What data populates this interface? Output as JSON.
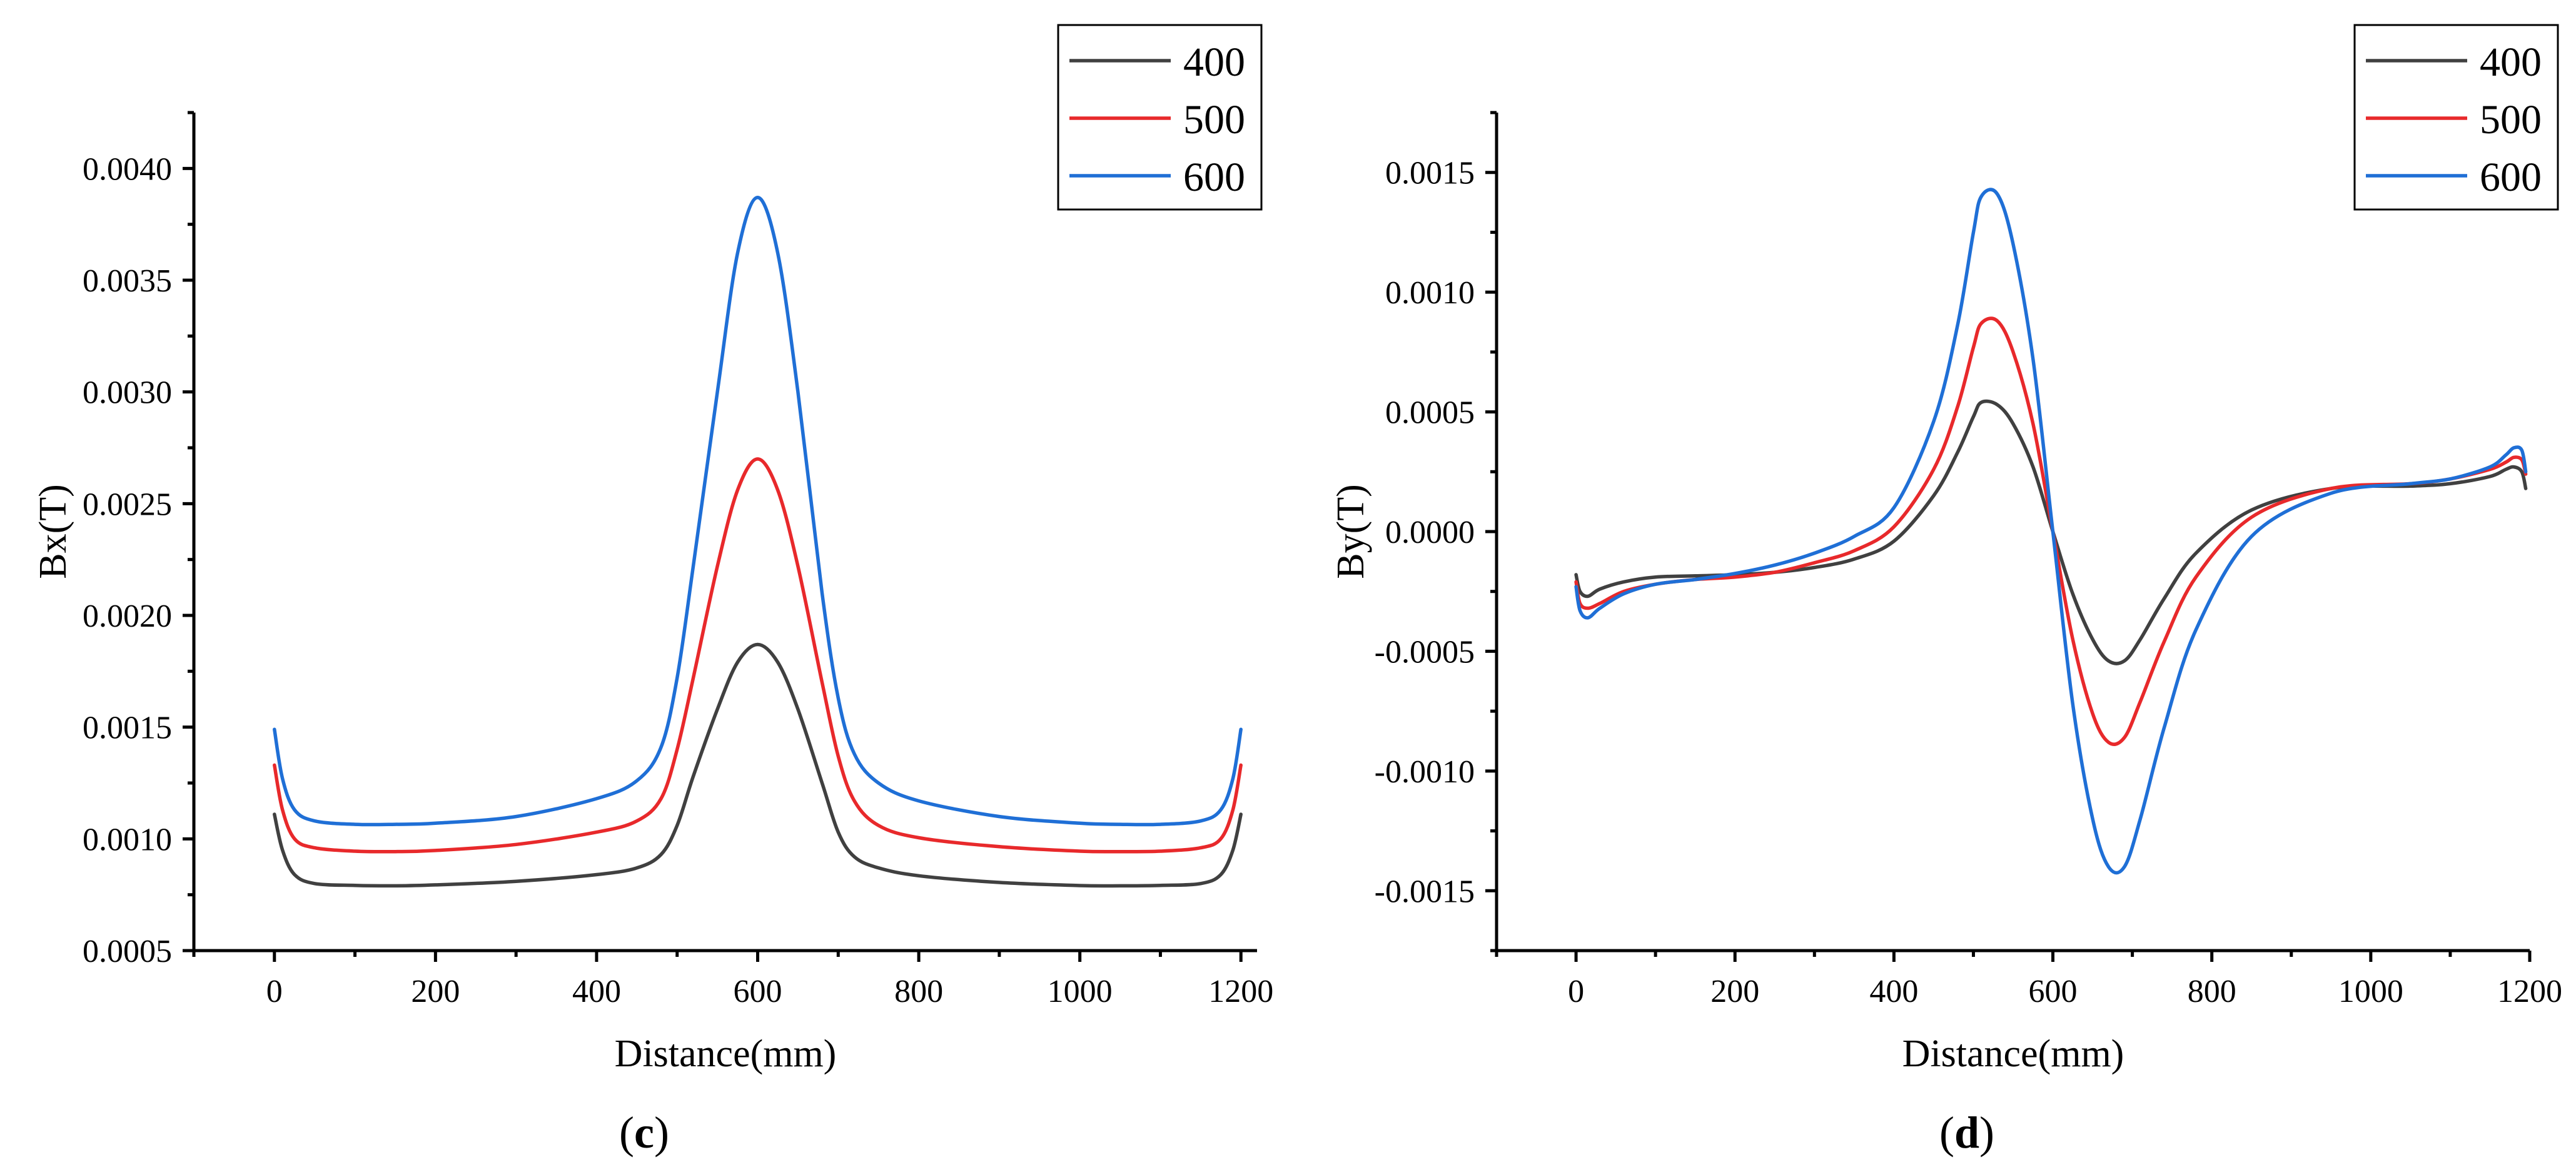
{
  "chart_data": [
    {
      "type": "line",
      "panel": "c",
      "caption_open": "(",
      "caption_letter": "c",
      "caption_close": ")",
      "xlabel": "Distance(mm)",
      "ylabel": "Bx(T)",
      "xlim": [
        -100,
        1220
      ],
      "ylim": [
        0.0005,
        0.00425
      ],
      "xticks": [
        0,
        200,
        400,
        600,
        800,
        1000,
        1200
      ],
      "xtick_labels": [
        "0",
        "200",
        "400",
        "600",
        "800",
        "1000",
        "1200"
      ],
      "yticks": [
        0.0005,
        0.001,
        0.0015,
        0.002,
        0.0025,
        0.003,
        0.0035,
        0.004
      ],
      "ytick_labels": [
        "0.0005",
        "0.0010",
        "0.0015",
        "0.0020",
        "0.0025",
        "0.0030",
        "0.0035",
        "0.0040"
      ],
      "legend_position": "top-right",
      "series": [
        {
          "name": "400",
          "color": "#404040",
          "x": [
            0,
            10,
            25,
            50,
            100,
            150,
            200,
            300,
            400,
            450,
            480,
            500,
            520,
            550,
            575,
            600,
            625,
            650,
            680,
            700,
            720,
            750,
            800,
            900,
            1000,
            1050,
            1100,
            1150,
            1175,
            1190,
            1200
          ],
          "y": [
            0.00111,
            0.00095,
            0.00084,
            0.0008,
            0.000792,
            0.00079,
            0.000794,
            0.00081,
            0.00084,
            0.00087,
            0.00093,
            0.00106,
            0.00128,
            0.00158,
            0.00179,
            0.00187,
            0.00179,
            0.00158,
            0.00125,
            0.00103,
            0.00092,
            0.00087,
            0.000835,
            0.000805,
            0.000791,
            0.00079,
            0.000792,
            0.0008,
            0.00084,
            0.00095,
            0.00111
          ]
        },
        {
          "name": "500",
          "color": "#e8292b",
          "x": [
            0,
            10,
            25,
            50,
            100,
            150,
            200,
            300,
            400,
            450,
            480,
            500,
            520,
            550,
            575,
            600,
            625,
            650,
            680,
            700,
            720,
            750,
            800,
            900,
            1000,
            1050,
            1100,
            1150,
            1175,
            1190,
            1200
          ],
          "y": [
            0.00133,
            0.00113,
            0.001,
            0.00096,
            0.000945,
            0.000943,
            0.000948,
            0.000975,
            0.00103,
            0.00108,
            0.00118,
            0.0014,
            0.00172,
            0.00222,
            0.00256,
            0.0027,
            0.00256,
            0.00222,
            0.0017,
            0.00137,
            0.00117,
            0.00106,
            0.001005,
            0.000965,
            0.000945,
            0.000943,
            0.000945,
            0.00096,
            0.001,
            0.00113,
            0.00133
          ]
        },
        {
          "name": "600",
          "color": "#1f6fd6",
          "x": [
            0,
            10,
            25,
            50,
            100,
            150,
            200,
            300,
            400,
            450,
            480,
            500,
            520,
            550,
            575,
            600,
            625,
            650,
            680,
            700,
            720,
            750,
            800,
            900,
            1000,
            1050,
            1100,
            1150,
            1175,
            1190,
            1200
          ],
          "y": [
            0.00149,
            0.00127,
            0.00113,
            0.00108,
            0.001065,
            0.001065,
            0.00107,
            0.0011,
            0.00118,
            0.00126,
            0.00141,
            0.00172,
            0.00222,
            0.003,
            0.00362,
            0.00387,
            0.00362,
            0.003,
            0.0021,
            0.00163,
            0.00138,
            0.00125,
            0.00117,
            0.0011,
            0.00107,
            0.001065,
            0.001065,
            0.00108,
            0.00113,
            0.00127,
            0.00149
          ]
        }
      ]
    },
    {
      "type": "line",
      "panel": "d",
      "caption_open": "(",
      "caption_letter": "d",
      "caption_close": ")",
      "xlabel": "Distance(mm)",
      "ylabel": "By(T)",
      "xlim": [
        -100,
        1200
      ],
      "ylim": [
        -0.00175,
        0.00175
      ],
      "xticks": [
        0,
        200,
        400,
        600,
        800,
        1000,
        1200
      ],
      "xtick_labels": [
        "0",
        "200",
        "400",
        "600",
        "800",
        "1000",
        "1200"
      ],
      "yticks": [
        -0.0015,
        -0.001,
        -0.0005,
        0,
        0.0005,
        0.001,
        0.0015
      ],
      "ytick_labels": [
        "-0.0015",
        "-0.0010",
        "-0.0005",
        "0.0000",
        "0.0005",
        "0.0010",
        "0.0015"
      ],
      "legend_position": "top-right",
      "series": [
        {
          "name": "400",
          "color": "#404040",
          "x": [
            0,
            5,
            15,
            30,
            60,
            100,
            150,
            200,
            250,
            300,
            350,
            400,
            450,
            480,
            500,
            510,
            530,
            550,
            575,
            600,
            625,
            650,
            670,
            690,
            710,
            740,
            780,
            850,
            950,
            1050,
            1100,
            1150,
            1170,
            1180,
            1190,
            1195
          ],
          "y": [
            -0.00018,
            -0.00025,
            -0.00027,
            -0.00024,
            -0.00021,
            -0.00019,
            -0.000185,
            -0.00018,
            -0.00017,
            -0.00015,
            -0.000115,
            -4e-05,
            0.00015,
            0.00033,
            0.00048,
            0.00054,
            0.00053,
            0.00045,
            0.00027,
            0.0,
            -0.00026,
            -0.00045,
            -0.00054,
            -0.00054,
            -0.00045,
            -0.00028,
            -9e-05,
            9e-05,
            0.00018,
            0.00019,
            0.0002,
            0.00023,
            0.00026,
            0.00027,
            0.00025,
            0.00018
          ]
        },
        {
          "name": "500",
          "color": "#e8292b",
          "x": [
            0,
            5,
            15,
            30,
            60,
            100,
            150,
            200,
            250,
            300,
            350,
            400,
            450,
            480,
            500,
            510,
            530,
            550,
            575,
            600,
            625,
            650,
            670,
            690,
            710,
            740,
            780,
            850,
            950,
            1050,
            1100,
            1150,
            1170,
            1180,
            1190,
            1195
          ],
          "y": [
            -0.00021,
            -0.0003,
            -0.00032,
            -0.0003,
            -0.00025,
            -0.00022,
            -0.0002,
            -0.00019,
            -0.00017,
            -0.00013,
            -8e-05,
            2e-05,
            0.00026,
            0.00052,
            0.00077,
            0.00087,
            0.00088,
            0.00075,
            0.00045,
            0.0,
            -0.00045,
            -0.00076,
            -0.00088,
            -0.00086,
            -0.00071,
            -0.00046,
            -0.00019,
            6e-05,
            0.00018,
            0.0002,
            0.00022,
            0.00026,
            0.00029,
            0.00031,
            0.0003,
            0.00024
          ]
        },
        {
          "name": "600",
          "color": "#1f6fd6",
          "x": [
            0,
            5,
            15,
            30,
            60,
            100,
            150,
            200,
            250,
            300,
            350,
            400,
            450,
            480,
            500,
            510,
            530,
            550,
            575,
            600,
            625,
            650,
            670,
            690,
            710,
            740,
            780,
            850,
            950,
            1050,
            1100,
            1150,
            1170,
            1180,
            1190,
            1195
          ],
          "y": [
            -0.00023,
            -0.00033,
            -0.00036,
            -0.00032,
            -0.00026,
            -0.00022,
            -0.0002,
            -0.000175,
            -0.00014,
            -9e-05,
            -2e-05,
            0.0001,
            0.00046,
            0.00086,
            0.00125,
            0.0014,
            0.00141,
            0.0012,
            0.00072,
            0.0,
            -0.00072,
            -0.0012,
            -0.0014,
            -0.0014,
            -0.0012,
            -0.00082,
            -0.00041,
            -2e-05,
            0.00016,
            0.0002,
            0.00022,
            0.00027,
            0.00032,
            0.00035,
            0.00034,
            0.00025
          ]
        }
      ]
    }
  ]
}
